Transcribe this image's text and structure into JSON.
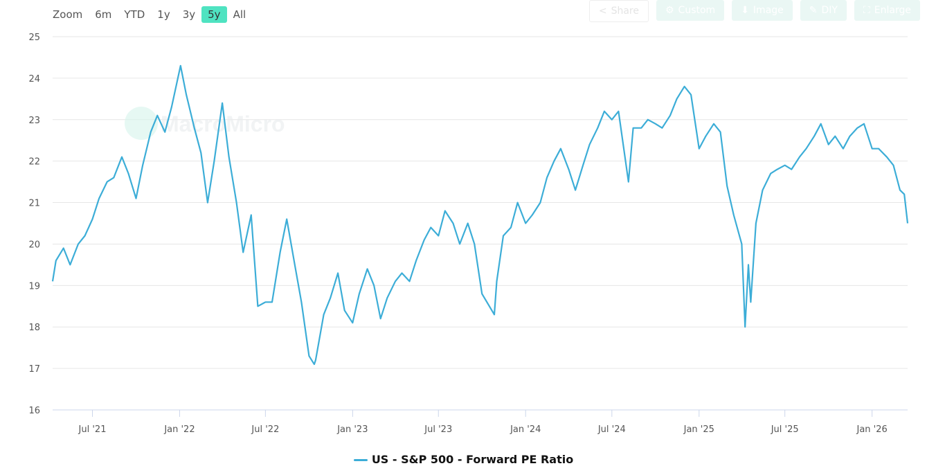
{
  "toolbar": {
    "zoom_label": "Zoom",
    "ranges": [
      "6m",
      "YTD",
      "1y",
      "3y",
      "5y",
      "All"
    ],
    "active_range": "5y",
    "buttons": [
      {
        "label": "Share",
        "icon": "share-icon"
      },
      {
        "label": "Custom",
        "icon": "gear-icon"
      },
      {
        "label": "Image",
        "icon": "download-icon"
      },
      {
        "label": "DIY",
        "icon": "pencil-icon"
      },
      {
        "label": "Enlarge",
        "icon": "expand-icon"
      }
    ]
  },
  "watermark": "MacroMicro",
  "colors": {
    "line": "#3cadd7",
    "active_range": "#4fe3c1",
    "grid": "#e6e6e6"
  },
  "chart_data": {
    "type": "line",
    "title": "",
    "xlabel": "",
    "ylabel": "",
    "ylim": [
      16,
      25
    ],
    "yticks": [
      16,
      17,
      18,
      19,
      20,
      21,
      22,
      23,
      24,
      25
    ],
    "xlim": [
      "2021-04-08",
      "2026-03-17"
    ],
    "xticks": [
      {
        "date": "2021-07-01",
        "label": "Jul '21"
      },
      {
        "date": "2022-01-01",
        "label": "Jan '22"
      },
      {
        "date": "2022-07-01",
        "label": "Jul '22"
      },
      {
        "date": "2023-01-01",
        "label": "Jan '23"
      },
      {
        "date": "2023-07-01",
        "label": "Jul '23"
      },
      {
        "date": "2024-01-01",
        "label": "Jan '24"
      },
      {
        "date": "2024-07-01",
        "label": "Jul '24"
      },
      {
        "date": "2025-01-01",
        "label": "Jan '25"
      },
      {
        "date": "2025-07-01",
        "label": "Jul '25"
      },
      {
        "date": "2026-01-01",
        "label": "Jan '26"
      }
    ],
    "grid": true,
    "legend_position": "bottom",
    "series": [
      {
        "name": "US - S&P 500 - Forward PE Ratio",
        "points": [
          [
            "2021-04-08",
            19.1
          ],
          [
            "2021-04-15",
            19.6
          ],
          [
            "2021-05-01",
            19.9
          ],
          [
            "2021-05-15",
            19.5
          ],
          [
            "2021-06-01",
            20.0
          ],
          [
            "2021-06-15",
            20.2
          ],
          [
            "2021-07-01",
            20.6
          ],
          [
            "2021-07-15",
            21.1
          ],
          [
            "2021-08-01",
            21.5
          ],
          [
            "2021-08-15",
            21.6
          ],
          [
            "2021-09-01",
            22.1
          ],
          [
            "2021-09-15",
            21.7
          ],
          [
            "2021-10-01",
            21.1
          ],
          [
            "2021-10-15",
            21.9
          ],
          [
            "2021-11-01",
            22.7
          ],
          [
            "2021-11-15",
            23.1
          ],
          [
            "2021-12-01",
            22.7
          ],
          [
            "2021-12-15",
            23.3
          ],
          [
            "2022-01-03",
            24.3
          ],
          [
            "2022-01-15",
            23.6
          ],
          [
            "2022-02-01",
            22.8
          ],
          [
            "2022-02-15",
            22.2
          ],
          [
            "2022-03-01",
            21.0
          ],
          [
            "2022-03-15",
            22.0
          ],
          [
            "2022-04-01",
            23.4
          ],
          [
            "2022-04-15",
            22.1
          ],
          [
            "2022-05-01",
            21.0
          ],
          [
            "2022-05-15",
            19.8
          ],
          [
            "2022-06-01",
            20.7
          ],
          [
            "2022-06-15",
            18.5
          ],
          [
            "2022-07-01",
            18.6
          ],
          [
            "2022-07-15",
            18.6
          ],
          [
            "2022-08-01",
            19.8
          ],
          [
            "2022-08-15",
            20.6
          ],
          [
            "2022-09-01",
            19.5
          ],
          [
            "2022-09-15",
            18.6
          ],
          [
            "2022-10-01",
            17.3
          ],
          [
            "2022-10-12",
            17.1
          ],
          [
            "2022-10-15",
            17.2
          ],
          [
            "2022-11-01",
            18.3
          ],
          [
            "2022-11-15",
            18.7
          ],
          [
            "2022-12-01",
            19.3
          ],
          [
            "2022-12-15",
            18.4
          ],
          [
            "2023-01-01",
            18.1
          ],
          [
            "2023-01-15",
            18.8
          ],
          [
            "2023-02-01",
            19.4
          ],
          [
            "2023-02-15",
            19.0
          ],
          [
            "2023-03-01",
            18.2
          ],
          [
            "2023-03-15",
            18.7
          ],
          [
            "2023-04-01",
            19.1
          ],
          [
            "2023-04-15",
            19.3
          ],
          [
            "2023-05-01",
            19.1
          ],
          [
            "2023-05-15",
            19.6
          ],
          [
            "2023-06-01",
            20.1
          ],
          [
            "2023-06-15",
            20.4
          ],
          [
            "2023-07-01",
            20.2
          ],
          [
            "2023-07-15",
            20.8
          ],
          [
            "2023-08-01",
            20.5
          ],
          [
            "2023-08-15",
            20.0
          ],
          [
            "2023-09-01",
            20.5
          ],
          [
            "2023-09-15",
            20.0
          ],
          [
            "2023-10-01",
            18.8
          ],
          [
            "2023-10-27",
            18.3
          ],
          [
            "2023-11-01",
            19.1
          ],
          [
            "2023-11-15",
            20.2
          ],
          [
            "2023-12-01",
            20.4
          ],
          [
            "2023-12-15",
            21.0
          ],
          [
            "2024-01-01",
            20.5
          ],
          [
            "2024-01-15",
            20.7
          ],
          [
            "2024-02-01",
            21.0
          ],
          [
            "2024-02-15",
            21.6
          ],
          [
            "2024-03-01",
            22.0
          ],
          [
            "2024-03-15",
            22.3
          ],
          [
            "2024-04-01",
            21.8
          ],
          [
            "2024-04-15",
            21.3
          ],
          [
            "2024-05-01",
            21.9
          ],
          [
            "2024-05-15",
            22.4
          ],
          [
            "2024-06-01",
            22.8
          ],
          [
            "2024-06-15",
            23.2
          ],
          [
            "2024-07-01",
            23.0
          ],
          [
            "2024-07-15",
            23.2
          ],
          [
            "2024-08-05",
            21.5
          ],
          [
            "2024-08-15",
            22.8
          ],
          [
            "2024-09-01",
            22.8
          ],
          [
            "2024-09-15",
            23.0
          ],
          [
            "2024-10-01",
            22.9
          ],
          [
            "2024-10-15",
            22.8
          ],
          [
            "2024-11-01",
            23.1
          ],
          [
            "2024-11-15",
            23.5
          ],
          [
            "2024-12-01",
            23.8
          ],
          [
            "2024-12-15",
            23.6
          ],
          [
            "2025-01-01",
            22.3
          ],
          [
            "2025-01-15",
            22.6
          ],
          [
            "2025-02-01",
            22.9
          ],
          [
            "2025-02-15",
            22.7
          ],
          [
            "2025-03-01",
            21.4
          ],
          [
            "2025-03-15",
            20.7
          ],
          [
            "2025-04-01",
            20.0
          ],
          [
            "2025-04-08",
            18.0
          ],
          [
            "2025-04-15",
            19.5
          ],
          [
            "2025-04-20",
            18.6
          ],
          [
            "2025-05-01",
            20.5
          ],
          [
            "2025-05-15",
            21.3
          ],
          [
            "2025-06-01",
            21.7
          ],
          [
            "2025-06-15",
            21.8
          ],
          [
            "2025-07-01",
            21.9
          ],
          [
            "2025-07-15",
            21.8
          ],
          [
            "2025-08-01",
            22.1
          ],
          [
            "2025-08-15",
            22.3
          ],
          [
            "2025-09-01",
            22.6
          ],
          [
            "2025-09-15",
            22.9
          ],
          [
            "2025-10-01",
            22.4
          ],
          [
            "2025-10-15",
            22.6
          ],
          [
            "2025-11-01",
            22.3
          ],
          [
            "2025-11-15",
            22.6
          ],
          [
            "2025-12-01",
            22.8
          ],
          [
            "2025-12-15",
            22.9
          ],
          [
            "2026-01-01",
            22.3
          ],
          [
            "2026-01-15",
            22.3
          ],
          [
            "2026-02-01",
            22.1
          ],
          [
            "2026-02-15",
            21.9
          ],
          [
            "2026-03-01",
            21.3
          ],
          [
            "2026-03-10",
            21.2
          ],
          [
            "2026-03-17",
            20.5
          ]
        ]
      }
    ]
  }
}
